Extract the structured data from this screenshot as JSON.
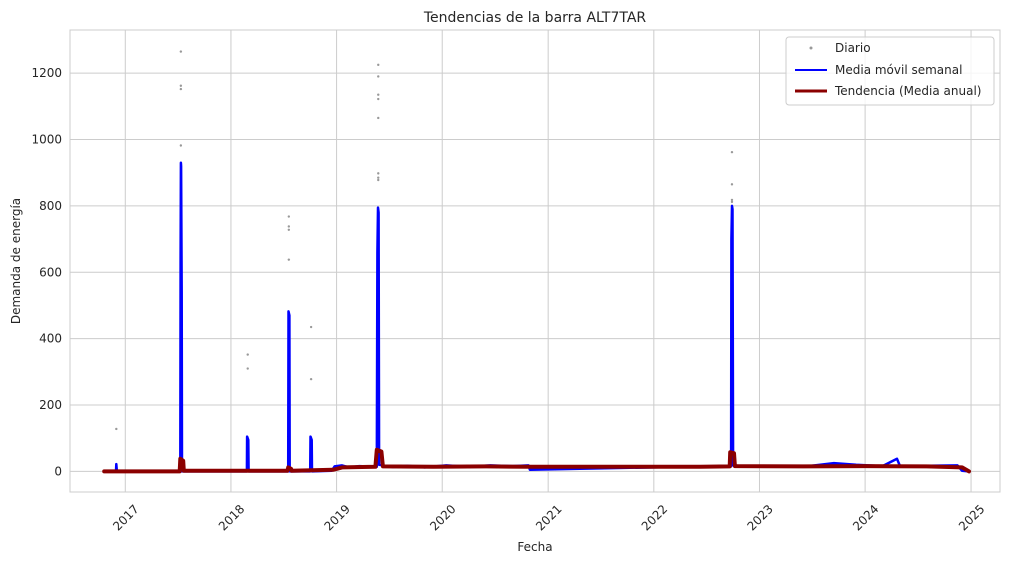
{
  "chart_data": {
    "type": "line",
    "title": "Tendencias de la barra ALT7TAR",
    "xlabel": "Fecha",
    "ylabel": "Demanda de energía",
    "xlim": [
      "2016-06-24",
      "2025-04-11"
    ],
    "ylim": [
      -62,
      1330
    ],
    "x_ticks": [
      "2017",
      "2018",
      "2019",
      "2020",
      "2021",
      "2022",
      "2023",
      "2024",
      "2025"
    ],
    "y_ticks": [
      0,
      200,
      400,
      600,
      800,
      1000,
      1200
    ],
    "grid": true,
    "legend_position": "top-right",
    "colors": {
      "daily": "#999999",
      "weekly": "#0000ff",
      "annual": "#8b0000",
      "grid": "#cccccc",
      "axes": "#cccccc"
    },
    "series": [
      {
        "name": "Diario",
        "style": "points",
        "points": [
          {
            "x": "2016-12-01",
            "y": 128
          },
          {
            "x": "2017-07-12",
            "y": 1265
          },
          {
            "x": "2017-07-12",
            "y": 1162
          },
          {
            "x": "2017-07-12",
            "y": 1152
          },
          {
            "x": "2017-07-12",
            "y": 982
          },
          {
            "x": "2018-02-28",
            "y": 352
          },
          {
            "x": "2018-02-28",
            "y": 310
          },
          {
            "x": "2018-07-20",
            "y": 768
          },
          {
            "x": "2018-07-20",
            "y": 738
          },
          {
            "x": "2018-07-20",
            "y": 728
          },
          {
            "x": "2018-07-20",
            "y": 638
          },
          {
            "x": "2018-10-05",
            "y": 435
          },
          {
            "x": "2018-10-05",
            "y": 278
          },
          {
            "x": "2019-05-25",
            "y": 1225
          },
          {
            "x": "2019-05-25",
            "y": 1190
          },
          {
            "x": "2019-05-25",
            "y": 1135
          },
          {
            "x": "2019-05-25",
            "y": 1122
          },
          {
            "x": "2019-05-25",
            "y": 1065
          },
          {
            "x": "2019-05-25",
            "y": 898
          },
          {
            "x": "2019-05-25",
            "y": 885
          },
          {
            "x": "2019-05-25",
            "y": 878
          },
          {
            "x": "2022-09-28",
            "y": 962
          },
          {
            "x": "2022-09-28",
            "y": 865
          },
          {
            "x": "2022-09-28",
            "y": 818
          },
          {
            "x": "2022-09-28",
            "y": 812
          }
        ]
      },
      {
        "name": "Media móvil semanal",
        "style": "line",
        "points": [
          {
            "x": "2016-10-20",
            "y": 0
          },
          {
            "x": "2016-11-30",
            "y": 0
          },
          {
            "x": "2016-12-01",
            "y": 22
          },
          {
            "x": "2016-12-03",
            "y": 0
          },
          {
            "x": "2017-07-10",
            "y": 0
          },
          {
            "x": "2017-07-11",
            "y": 650
          },
          {
            "x": "2017-07-12",
            "y": 930
          },
          {
            "x": "2017-07-13",
            "y": 920
          },
          {
            "x": "2017-07-15",
            "y": 540
          },
          {
            "x": "2017-07-16",
            "y": 0
          },
          {
            "x": "2018-02-25",
            "y": 0
          },
          {
            "x": "2018-02-26",
            "y": 105
          },
          {
            "x": "2018-03-02",
            "y": 95
          },
          {
            "x": "2018-03-03",
            "y": 0
          },
          {
            "x": "2018-07-18",
            "y": 0
          },
          {
            "x": "2018-07-19",
            "y": 482
          },
          {
            "x": "2018-07-22",
            "y": 470
          },
          {
            "x": "2018-07-23",
            "y": 0
          },
          {
            "x": "2018-10-02",
            "y": 0
          },
          {
            "x": "2018-10-03",
            "y": 105
          },
          {
            "x": "2018-10-07",
            "y": 95
          },
          {
            "x": "2018-10-08",
            "y": 0
          },
          {
            "x": "2018-12-15",
            "y": 2
          },
          {
            "x": "2018-12-25",
            "y": 15
          },
          {
            "x": "2019-01-20",
            "y": 18
          },
          {
            "x": "2019-02-15",
            "y": 12
          },
          {
            "x": "2019-03-20",
            "y": 16
          },
          {
            "x": "2019-05-20",
            "y": 14
          },
          {
            "x": "2019-05-22",
            "y": 660
          },
          {
            "x": "2019-05-24",
            "y": 795
          },
          {
            "x": "2019-05-26",
            "y": 780
          },
          {
            "x": "2019-05-28",
            "y": 20
          },
          {
            "x": "2019-07-15",
            "y": 13
          },
          {
            "x": "2019-09-01",
            "y": 17
          },
          {
            "x": "2019-11-01",
            "y": 12
          },
          {
            "x": "2020-01-15",
            "y": 18
          },
          {
            "x": "2020-04-01",
            "y": 14
          },
          {
            "x": "2020-06-15",
            "y": 18
          },
          {
            "x": "2020-09-01",
            "y": 16
          },
          {
            "x": "2020-10-25",
            "y": 18
          },
          {
            "x": "2020-10-30",
            "y": 5
          },
          {
            "x": "2022-06-10",
            "y": 15
          },
          {
            "x": "2022-08-01",
            "y": 14
          },
          {
            "x": "2022-09-25",
            "y": 15
          },
          {
            "x": "2022-09-26",
            "y": 700
          },
          {
            "x": "2022-09-28",
            "y": 800
          },
          {
            "x": "2022-09-30",
            "y": 790
          },
          {
            "x": "2022-10-02",
            "y": 18
          },
          {
            "x": "2022-12-15",
            "y": 14
          },
          {
            "x": "2023-03-01",
            "y": 16
          },
          {
            "x": "2023-06-01",
            "y": 14
          },
          {
            "x": "2023-09-15",
            "y": 25
          },
          {
            "x": "2023-12-01",
            "y": 20
          },
          {
            "x": "2024-03-01",
            "y": 16
          },
          {
            "x": "2024-04-20",
            "y": 38
          },
          {
            "x": "2024-05-01",
            "y": 15
          },
          {
            "x": "2024-08-01",
            "y": 17
          },
          {
            "x": "2024-11-15",
            "y": 18
          },
          {
            "x": "2024-12-01",
            "y": 2
          },
          {
            "x": "2024-12-25",
            "y": 0
          }
        ]
      },
      {
        "name": "Tendencia (Media anual)",
        "style": "line",
        "points": [
          {
            "x": "2016-10-20",
            "y": 0
          },
          {
            "x": "2017-07-08",
            "y": 0
          },
          {
            "x": "2017-07-10",
            "y": 38
          },
          {
            "x": "2017-07-20",
            "y": 32
          },
          {
            "x": "2017-07-22",
            "y": 2
          },
          {
            "x": "2018-07-15",
            "y": 2
          },
          {
            "x": "2018-07-18",
            "y": 12
          },
          {
            "x": "2018-07-28",
            "y": 8
          },
          {
            "x": "2018-07-30",
            "y": 2
          },
          {
            "x": "2018-12-20",
            "y": 5
          },
          {
            "x": "2019-01-20",
            "y": 12
          },
          {
            "x": "2019-05-15",
            "y": 14
          },
          {
            "x": "2019-05-20",
            "y": 65
          },
          {
            "x": "2019-06-05",
            "y": 60
          },
          {
            "x": "2019-06-10",
            "y": 15
          },
          {
            "x": "2019-12-01",
            "y": 14
          },
          {
            "x": "2020-06-01",
            "y": 15
          },
          {
            "x": "2020-10-28",
            "y": 14
          },
          {
            "x": "2022-06-10",
            "y": 14
          },
          {
            "x": "2022-09-20",
            "y": 15
          },
          {
            "x": "2022-09-22",
            "y": 58
          },
          {
            "x": "2022-10-05",
            "y": 55
          },
          {
            "x": "2022-10-08",
            "y": 16
          },
          {
            "x": "2023-06-01",
            "y": 15
          },
          {
            "x": "2024-01-01",
            "y": 16
          },
          {
            "x": "2024-08-01",
            "y": 15
          },
          {
            "x": "2024-12-01",
            "y": 12
          },
          {
            "x": "2024-12-25",
            "y": 0
          }
        ]
      }
    ]
  }
}
